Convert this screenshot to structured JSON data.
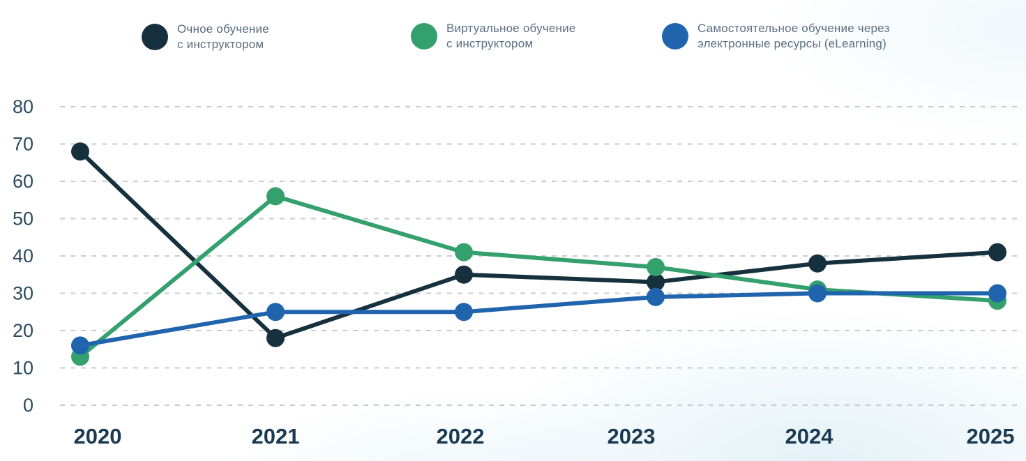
{
  "legend": {
    "items": [
      {
        "line1": "Очное обучение",
        "line2": "с инструктором",
        "color": "#16303e"
      },
      {
        "line1": "Виртуальное обучение",
        "line2": "с инструктором",
        "color": "#34a06d"
      },
      {
        "line1": "Самостоятельное обучение через",
        "line2": "электронные ресурсы (eLearning)",
        "color": "#2064ae"
      }
    ]
  },
  "chart_data": {
    "type": "line",
    "categories": [
      "2020",
      "2021",
      "2022",
      "2023",
      "2024",
      "2025"
    ],
    "series": [
      {
        "name": "Очное обучение с инструктором",
        "color": "#16303e",
        "values": [
          68,
          18,
          35,
          33,
          38,
          41
        ]
      },
      {
        "name": "Виртуальное обучение с инструктором",
        "color": "#34a06d",
        "values": [
          13,
          56,
          41,
          37,
          31,
          28
        ]
      },
      {
        "name": "Самостоятельное обучение через электронные ресурсы (eLearning)",
        "color": "#2064ae",
        "values": [
          16,
          25,
          25,
          29,
          30,
          30
        ]
      }
    ],
    "title": "",
    "xlabel": "",
    "ylabel": "",
    "yticks": [
      80,
      70,
      60,
      50,
      40,
      30,
      20,
      10,
      0
    ],
    "ylim": [
      0,
      80
    ],
    "grid": "horizontal-dashed",
    "legend_position": "top"
  },
  "colors": {
    "grid_line": "#c7cbce",
    "y_tick_label": "#2d4a5e",
    "x_tick_label": "#1a3a52",
    "legend_text": "#5c6e7f",
    "background": "#ffffff"
  }
}
